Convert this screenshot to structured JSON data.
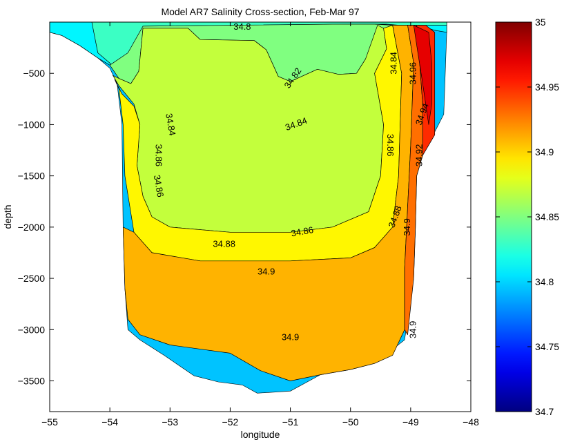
{
  "chart_data": {
    "type": "contour",
    "title": "Model AR7 Salinity Cross-section, Feb-Mar 97",
    "xlabel": "longitude",
    "ylabel": "depth",
    "xlim": [
      -55,
      -48
    ],
    "ylim": [
      -3800,
      0
    ],
    "x_ticks": [
      -55,
      -54,
      -53,
      -52,
      -51,
      -50,
      -49,
      -48
    ],
    "y_ticks": [
      -500,
      -1000,
      -1500,
      -2000,
      -2500,
      -3000,
      -3500
    ],
    "x_tick_labels": [
      "−55",
      "−54",
      "−53",
      "−52",
      "−51",
      "−50",
      "−49",
      "−48"
    ],
    "y_tick_labels": [
      "−500",
      "−1000",
      "−1500",
      "−2000",
      "−2500",
      "−3000",
      "−3500"
    ],
    "colorbar": {
      "min": 34.7,
      "max": 35,
      "ticks": [
        34.7,
        34.75,
        34.8,
        34.85,
        34.9,
        34.95,
        35
      ],
      "tick_labels": [
        "34.7",
        "34.75",
        "34.8",
        "34.85",
        "34.9",
        "34.95",
        "35"
      ],
      "colormap": "jet"
    },
    "domain_boundary": [
      [
        -55,
        -100
      ],
      [
        -54.8,
        -130
      ],
      [
        -54.5,
        -230
      ],
      [
        -54.2,
        -350
      ],
      [
        -54,
        -450
      ],
      [
        -53.88,
        -600
      ],
      [
        -53.8,
        -1000
      ],
      [
        -53.78,
        -2000
      ],
      [
        -53.75,
        -2600
      ],
      [
        -53.7,
        -3000
      ],
      [
        -53.5,
        -3100
      ],
      [
        -53.1,
        -3250
      ],
      [
        -52.6,
        -3450
      ],
      [
        -52.2,
        -3510
      ],
      [
        -51.8,
        -3540
      ],
      [
        -51.55,
        -3620
      ],
      [
        -51.0,
        -3600
      ],
      [
        -50.5,
        -3440
      ],
      [
        -50.0,
        -3390
      ],
      [
        -49.6,
        -3330
      ],
      [
        -49.1,
        -3100
      ],
      [
        -48.95,
        -2500
      ],
      [
        -48.92,
        -2000
      ],
      [
        -48.9,
        -1500
      ],
      [
        -48.8,
        -1300
      ],
      [
        -48.45,
        -900
      ],
      [
        -48.4,
        -100
      ],
      [
        -48.4,
        0
      ],
      [
        -55,
        0
      ]
    ],
    "levels": [
      {
        "value": 34.8,
        "polygon": [
          [
            -55,
            0
          ],
          [
            -55,
            -100
          ],
          [
            -54.8,
            -130
          ],
          [
            -54.5,
            -230
          ],
          [
            -54.2,
            -350
          ],
          [
            -54,
            -420
          ],
          [
            -53.7,
            -300
          ],
          [
            -53.4,
            -40
          ],
          [
            -50.0,
            -20
          ],
          [
            -49.2,
            -20
          ],
          [
            -48.8,
            -40
          ],
          [
            -48.6,
            -80
          ],
          [
            -48.4,
            -100
          ],
          [
            -48.4,
            0
          ]
        ]
      },
      {
        "value": 34.82,
        "polygon": [
          [
            -54.3,
            0
          ],
          [
            -54.2,
            -300
          ],
          [
            -53.9,
            -450
          ],
          [
            -53.7,
            -500
          ],
          [
            -53.55,
            -300
          ],
          [
            -53.45,
            -40
          ],
          [
            -50.0,
            -20
          ],
          [
            -49.4,
            -20
          ],
          [
            -49.2,
            -30
          ],
          [
            -48.4,
            -30
          ],
          [
            -48.4,
            0
          ]
        ]
      },
      {
        "value": 34.84,
        "polygon": [
          [
            -54.0,
            -420
          ],
          [
            -53.85,
            -550
          ],
          [
            -53.65,
            -600
          ],
          [
            -53.52,
            -480
          ],
          [
            -53.45,
            -60
          ],
          [
            -52.7,
            -60
          ],
          [
            -52.5,
            -170
          ],
          [
            -51.6,
            -180
          ],
          [
            -51.4,
            -270
          ],
          [
            -51.2,
            -530
          ],
          [
            -51.0,
            -580
          ],
          [
            -50.55,
            -460
          ],
          [
            -50.2,
            -510
          ],
          [
            -49.9,
            -500
          ],
          [
            -49.75,
            -360
          ],
          [
            -49.6,
            -280
          ],
          [
            -49.4,
            -60
          ],
          [
            -49.3,
            -30
          ],
          [
            -49.6,
            -20
          ],
          [
            -50.3,
            -20
          ],
          [
            -53.45,
            -40
          ],
          [
            -53.7,
            -300
          ]
        ]
      },
      {
        "value": 34.86,
        "polygon": [
          [
            -53.95,
            -520
          ],
          [
            -53.85,
            -620
          ],
          [
            -53.6,
            -800
          ],
          [
            -53.5,
            -1000
          ],
          [
            -53.55,
            -1400
          ],
          [
            -53.45,
            -1700
          ],
          [
            -53.3,
            -1900
          ],
          [
            -53.0,
            -2000
          ],
          [
            -52.0,
            -2050
          ],
          [
            -51.0,
            -2050
          ],
          [
            -50.3,
            -2000
          ],
          [
            -49.7,
            -1850
          ],
          [
            -49.5,
            -1500
          ],
          [
            -49.45,
            -1000
          ],
          [
            -49.6,
            -500
          ],
          [
            -49.4,
            -260
          ],
          [
            -49.45,
            -60
          ],
          [
            -49.55,
            -30
          ],
          [
            -49.75,
            -360
          ],
          [
            -49.9,
            -500
          ],
          [
            -50.2,
            -510
          ],
          [
            -50.55,
            -460
          ],
          [
            -51.0,
            -580
          ],
          [
            -51.2,
            -530
          ],
          [
            -51.4,
            -270
          ],
          [
            -51.6,
            -180
          ],
          [
            -52.5,
            -170
          ],
          [
            -52.7,
            -60
          ],
          [
            -53.45,
            -60
          ],
          [
            -53.52,
            -480
          ],
          [
            -53.65,
            -600
          ],
          [
            -53.85,
            -550
          ]
        ]
      },
      {
        "value": 34.88,
        "polygon": [
          [
            -53.92,
            -560
          ],
          [
            -53.8,
            -700
          ],
          [
            -53.6,
            -820
          ],
          [
            -53.5,
            -1000
          ],
          [
            -53.55,
            -1400
          ],
          [
            -53.45,
            -1700
          ],
          [
            -53.3,
            -1900
          ],
          [
            -53.0,
            -2000
          ],
          [
            -52.0,
            -2050
          ],
          [
            -51.0,
            -2050
          ],
          [
            -50.3,
            -2000
          ],
          [
            -49.7,
            -1850
          ],
          [
            -49.5,
            -1500
          ],
          [
            -49.45,
            -1000
          ],
          [
            -49.6,
            -500
          ],
          [
            -49.4,
            -260
          ],
          [
            -49.45,
            -60
          ],
          [
            -49.3,
            -30
          ],
          [
            -49.15,
            -500
          ],
          [
            -49.2,
            -1500
          ],
          [
            -49.3,
            -2000
          ],
          [
            -49.6,
            -2200
          ],
          [
            -50.0,
            -2300
          ],
          [
            -51.0,
            -2330
          ],
          [
            -52.5,
            -2330
          ],
          [
            -53.3,
            -2250
          ],
          [
            -53.6,
            -2050
          ],
          [
            -53.75,
            -1500
          ],
          [
            -53.78,
            -1000
          ],
          [
            -53.85,
            -650
          ]
        ]
      },
      {
        "value": 34.9,
        "polygon": [
          [
            -53.78,
            -2000
          ],
          [
            -53.6,
            -2050
          ],
          [
            -53.3,
            -2250
          ],
          [
            -52.5,
            -2330
          ],
          [
            -51.0,
            -2330
          ],
          [
            -50.0,
            -2300
          ],
          [
            -49.6,
            -2200
          ],
          [
            -49.3,
            -2000
          ],
          [
            -49.2,
            -1500
          ],
          [
            -49.15,
            -500
          ],
          [
            -49.3,
            -30
          ],
          [
            -49.05,
            -30
          ],
          [
            -48.95,
            -400
          ],
          [
            -49.0,
            -1200
          ],
          [
            -49.05,
            -1800
          ],
          [
            -49.1,
            -2400
          ],
          [
            -49.1,
            -3000
          ],
          [
            -49.3,
            -3250
          ],
          [
            -49.6,
            -3330
          ],
          [
            -50.0,
            -3390
          ],
          [
            -50.5,
            -3440
          ],
          [
            -51.0,
            -3500
          ],
          [
            -51.5,
            -3400
          ],
          [
            -52.0,
            -3230
          ],
          [
            -53.0,
            -3150
          ],
          [
            -53.5,
            -3050
          ],
          [
            -53.7,
            -2900
          ],
          [
            -53.75,
            -2600
          ]
        ]
      },
      {
        "value": 34.92,
        "polygon": [
          [
            -49.05,
            -30
          ],
          [
            -48.95,
            -400
          ],
          [
            -49.0,
            -1200
          ],
          [
            -49.05,
            -1800
          ],
          [
            -49.1,
            -2400
          ],
          [
            -49.1,
            -3000
          ],
          [
            -49.05,
            -3050
          ],
          [
            -48.95,
            -2500
          ],
          [
            -48.92,
            -2000
          ],
          [
            -48.9,
            -1500
          ],
          [
            -48.8,
            -1300
          ],
          [
            -48.8,
            -800
          ],
          [
            -48.85,
            -400
          ],
          [
            -48.9,
            -30
          ]
        ]
      },
      {
        "value": 34.94,
        "polygon": [
          [
            -48.9,
            -30
          ],
          [
            -48.85,
            -400
          ],
          [
            -48.8,
            -800
          ],
          [
            -48.8,
            -1300
          ],
          [
            -48.6,
            -1100
          ],
          [
            -48.6,
            -100
          ],
          [
            -48.75,
            -30
          ]
        ]
      },
      {
        "value": 34.96,
        "polygon": [
          [
            -48.95,
            -30
          ],
          [
            -48.88,
            -300
          ],
          [
            -48.8,
            -600
          ],
          [
            -48.75,
            -800
          ],
          [
            -48.7,
            -1000
          ],
          [
            -48.65,
            -800
          ],
          [
            -48.65,
            -400
          ],
          [
            -48.7,
            -100
          ]
        ]
      }
    ],
    "contour_labels": [
      {
        "text": "34.8",
        "x": -51.8,
        "y": -50,
        "angle": 0
      },
      {
        "text": "34.82",
        "x": -50.95,
        "y": -550,
        "angle": -55
      },
      {
        "text": "34.84",
        "x": -53.0,
        "y": -1000,
        "angle": 80
      },
      {
        "text": "34.84",
        "x": -50.9,
        "y": -1000,
        "angle": -20
      },
      {
        "text": "34.84",
        "x": -49.27,
        "y": -400,
        "angle": -90
      },
      {
        "text": "34.86",
        "x": -53.2,
        "y": -1300,
        "angle": 90
      },
      {
        "text": "34.86",
        "x": -53.2,
        "y": -1600,
        "angle": 80
      },
      {
        "text": "34.86",
        "x": -49.35,
        "y": -1200,
        "angle": 90
      },
      {
        "text": "34.86",
        "x": -50.8,
        "y": -2050,
        "angle": -10
      },
      {
        "text": "34.88",
        "x": -52.1,
        "y": -2170,
        "angle": 0
      },
      {
        "text": "34.88",
        "x": -49.25,
        "y": -1900,
        "angle": -70
      },
      {
        "text": "34.9",
        "x": -51.4,
        "y": -2440,
        "angle": 0
      },
      {
        "text": "34.9",
        "x": -51.0,
        "y": -3080,
        "angle": 0
      },
      {
        "text": "34.9",
        "x": -49.05,
        "y": -2000,
        "angle": -90
      },
      {
        "text": "34.9",
        "x": -48.95,
        "y": -3000,
        "angle": -90
      },
      {
        "text": "34.92",
        "x": -48.85,
        "y": -1300,
        "angle": -90
      },
      {
        "text": "34.94",
        "x": -48.8,
        "y": -900,
        "angle": -70
      },
      {
        "text": "34.96",
        "x": -48.95,
        "y": -500,
        "angle": -90
      }
    ]
  }
}
